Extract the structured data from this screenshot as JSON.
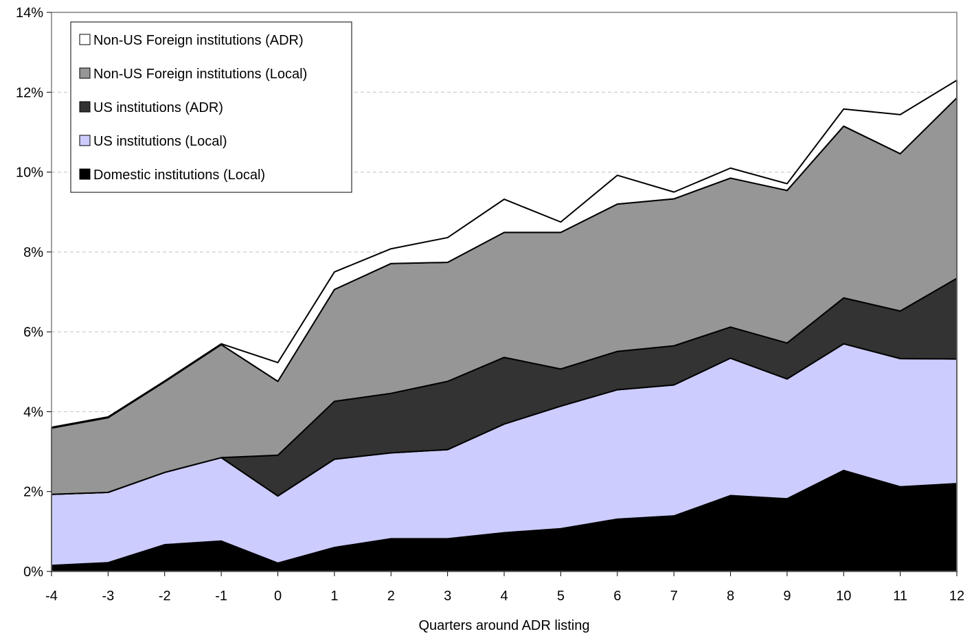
{
  "chart_data": {
    "type": "area",
    "stacked": true,
    "xlabel": "Quarters around ADR listing",
    "ylabel": "",
    "x": [
      -4,
      -3,
      -2,
      -1,
      0,
      1,
      2,
      3,
      4,
      5,
      6,
      7,
      8,
      9,
      10,
      11,
      12
    ],
    "x_tick_labels": [
      "-4",
      "-3",
      "-2",
      "-1",
      "0",
      "1",
      "2",
      "3",
      "4",
      "5",
      "6",
      "7",
      "8",
      "9",
      "10",
      "11",
      "12"
    ],
    "ylim": [
      0,
      14
    ],
    "y_ticks": [
      0,
      2,
      4,
      6,
      8,
      10,
      12,
      14
    ],
    "y_tick_labels": [
      "0%",
      "2%",
      "4%",
      "6%",
      "8%",
      "10%",
      "12%",
      "14%"
    ],
    "grid": "horizontal dashed",
    "legend_position": "top-left",
    "series": [
      {
        "name": "Domestic institutions (Local)",
        "color": "#000000",
        "values": [
          0.15,
          0.22,
          0.67,
          0.76,
          0.21,
          0.6,
          0.82,
          0.82,
          0.97,
          1.07,
          1.31,
          1.39,
          1.9,
          1.82,
          2.53,
          2.12,
          2.2
        ]
      },
      {
        "name": "US institutions (Local)",
        "color": "#ccccff",
        "values": [
          1.78,
          1.76,
          1.81,
          2.09,
          1.68,
          2.21,
          2.15,
          2.23,
          2.72,
          3.07,
          3.24,
          3.28,
          3.44,
          3.0,
          3.17,
          3.21,
          3.12
        ]
      },
      {
        "name": "US institutions (ADR)",
        "color": "#333333",
        "values": [
          0.0,
          0.0,
          0.0,
          0.0,
          1.02,
          1.45,
          1.49,
          1.71,
          1.67,
          0.93,
          0.96,
          0.98,
          0.78,
          0.9,
          1.15,
          1.19,
          2.02
        ]
      },
      {
        "name": "Non-US Foreign institutions (Local)",
        "color": "#969696",
        "values": [
          1.66,
          1.87,
          2.27,
          2.83,
          1.85,
          2.8,
          3.25,
          2.98,
          3.13,
          3.42,
          3.69,
          3.68,
          3.73,
          3.82,
          4.3,
          3.94,
          4.52
        ]
      },
      {
        "name": "Non-US Foreign institutions (ADR)",
        "color": "#ffffff",
        "values": [
          0.02,
          0.02,
          0.02,
          0.02,
          0.47,
          0.44,
          0.37,
          0.62,
          0.83,
          0.26,
          0.72,
          0.17,
          0.25,
          0.17,
          0.43,
          0.98,
          0.44
        ]
      }
    ]
  }
}
